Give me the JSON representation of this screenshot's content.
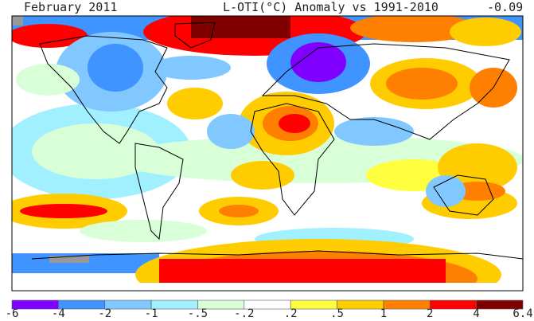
{
  "header": {
    "date": "February 2011",
    "title": "L-OTI(°C) Anomaly vs 1991-2010",
    "global_mean": "-0.09"
  },
  "legend": {
    "colors": [
      "#8000ff",
      "#3f94ff",
      "#80c8ff",
      "#a0f0ff",
      "#d8ffd8",
      "#ffffff",
      "#ffff40",
      "#ffcc00",
      "#ff8000",
      "#ff0000",
      "#800000"
    ],
    "labels": [
      "-6",
      "-4",
      "-2",
      "-1",
      "-.5",
      "-.2",
      ".2",
      ".5",
      "1",
      "2",
      "4",
      "6.4"
    ]
  }
}
